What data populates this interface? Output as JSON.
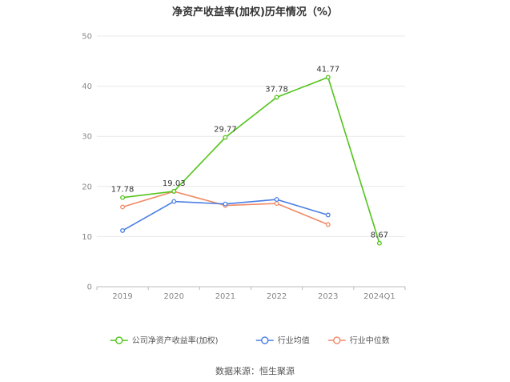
{
  "chart_data": {
    "type": "line",
    "title": "净资产收益率(加权)历年情况（%）",
    "categories": [
      "2019",
      "2020",
      "2021",
      "2022",
      "2023",
      "2024Q1"
    ],
    "ylim": [
      0,
      50
    ],
    "yticks": [
      0,
      10,
      20,
      30,
      40,
      50
    ],
    "grid": true,
    "legend_position": "bottom",
    "series": [
      {
        "name": "公司净资产收益率(加权)",
        "color": "#52c41a",
        "values": [
          17.78,
          19.03,
          29.77,
          37.78,
          41.77,
          8.67
        ],
        "labels": [
          "17.78",
          "19.03",
          "29.77",
          "37.78",
          "41.77",
          "8.67"
        ]
      },
      {
        "name": "行业均值",
        "color": "#4a7ee6",
        "values": [
          11.2,
          17.0,
          16.5,
          17.4,
          14.3,
          null
        ]
      },
      {
        "name": "行业中位数",
        "color": "#f08a65",
        "values": [
          15.9,
          19.0,
          16.2,
          16.6,
          12.4,
          null
        ]
      }
    ]
  },
  "source_text": "数据来源：恒生聚源"
}
